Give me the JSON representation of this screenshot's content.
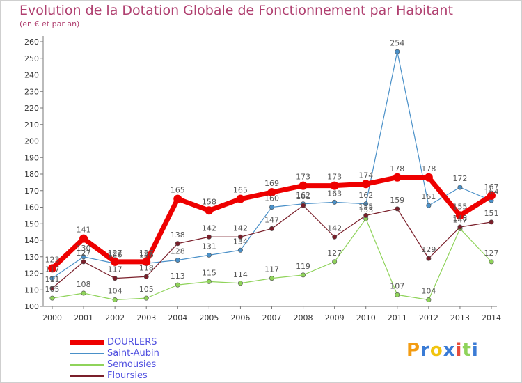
{
  "chart_data": {
    "type": "line",
    "title": "Evolution de la Dotation Globale de Fonctionnement par Habitant",
    "subtitle": "(en € et par an)",
    "categories": [
      "2000",
      "2001",
      "2002",
      "2003",
      "2004",
      "2005",
      "2006",
      "2007",
      "2008",
      "2009",
      "2010",
      "2011",
      "2012",
      "2013",
      "2014"
    ],
    "ylim": [
      100,
      260
    ],
    "yticks": [
      100,
      110,
      120,
      130,
      140,
      150,
      160,
      170,
      180,
      190,
      200,
      210,
      220,
      230,
      240,
      250,
      260
    ],
    "grid": false,
    "legend_position": "bottom-left",
    "series": [
      {
        "name": "DOURLERS",
        "color": "#ee0000",
        "values": [
          123,
          141,
          127,
          127,
          165,
          158,
          165,
          169,
          173,
          173,
          174,
          178,
          178,
          155,
          167
        ]
      },
      {
        "name": "Saint-Aubin",
        "color": "#4a90c8",
        "values": [
          117,
          130,
          126,
          126,
          128,
          131,
          134,
          160,
          162,
          163,
          162,
          254,
          161,
          172,
          164
        ]
      },
      {
        "name": "Semousies",
        "color": "#8fd35a",
        "values": [
          105,
          108,
          104,
          105,
          113,
          115,
          114,
          117,
          119,
          127,
          153,
          107,
          104,
          147,
          127
        ]
      },
      {
        "name": "Floursies",
        "color": "#7a1f2a",
        "values": [
          111,
          127,
          117,
          118,
          138,
          142,
          142,
          147,
          161,
          142,
          155,
          159,
          129,
          148,
          151
        ]
      }
    ]
  },
  "logo": {
    "text": "Proxiti",
    "letters": [
      "P",
      "r",
      "o",
      "x",
      "i",
      "t",
      "i"
    ],
    "colors": [
      "#f39c12",
      "#3a7bd5",
      "#f1c40f",
      "#3a7bd5",
      "#e74c3c",
      "#8fd35a",
      "#3a7bd5"
    ]
  }
}
